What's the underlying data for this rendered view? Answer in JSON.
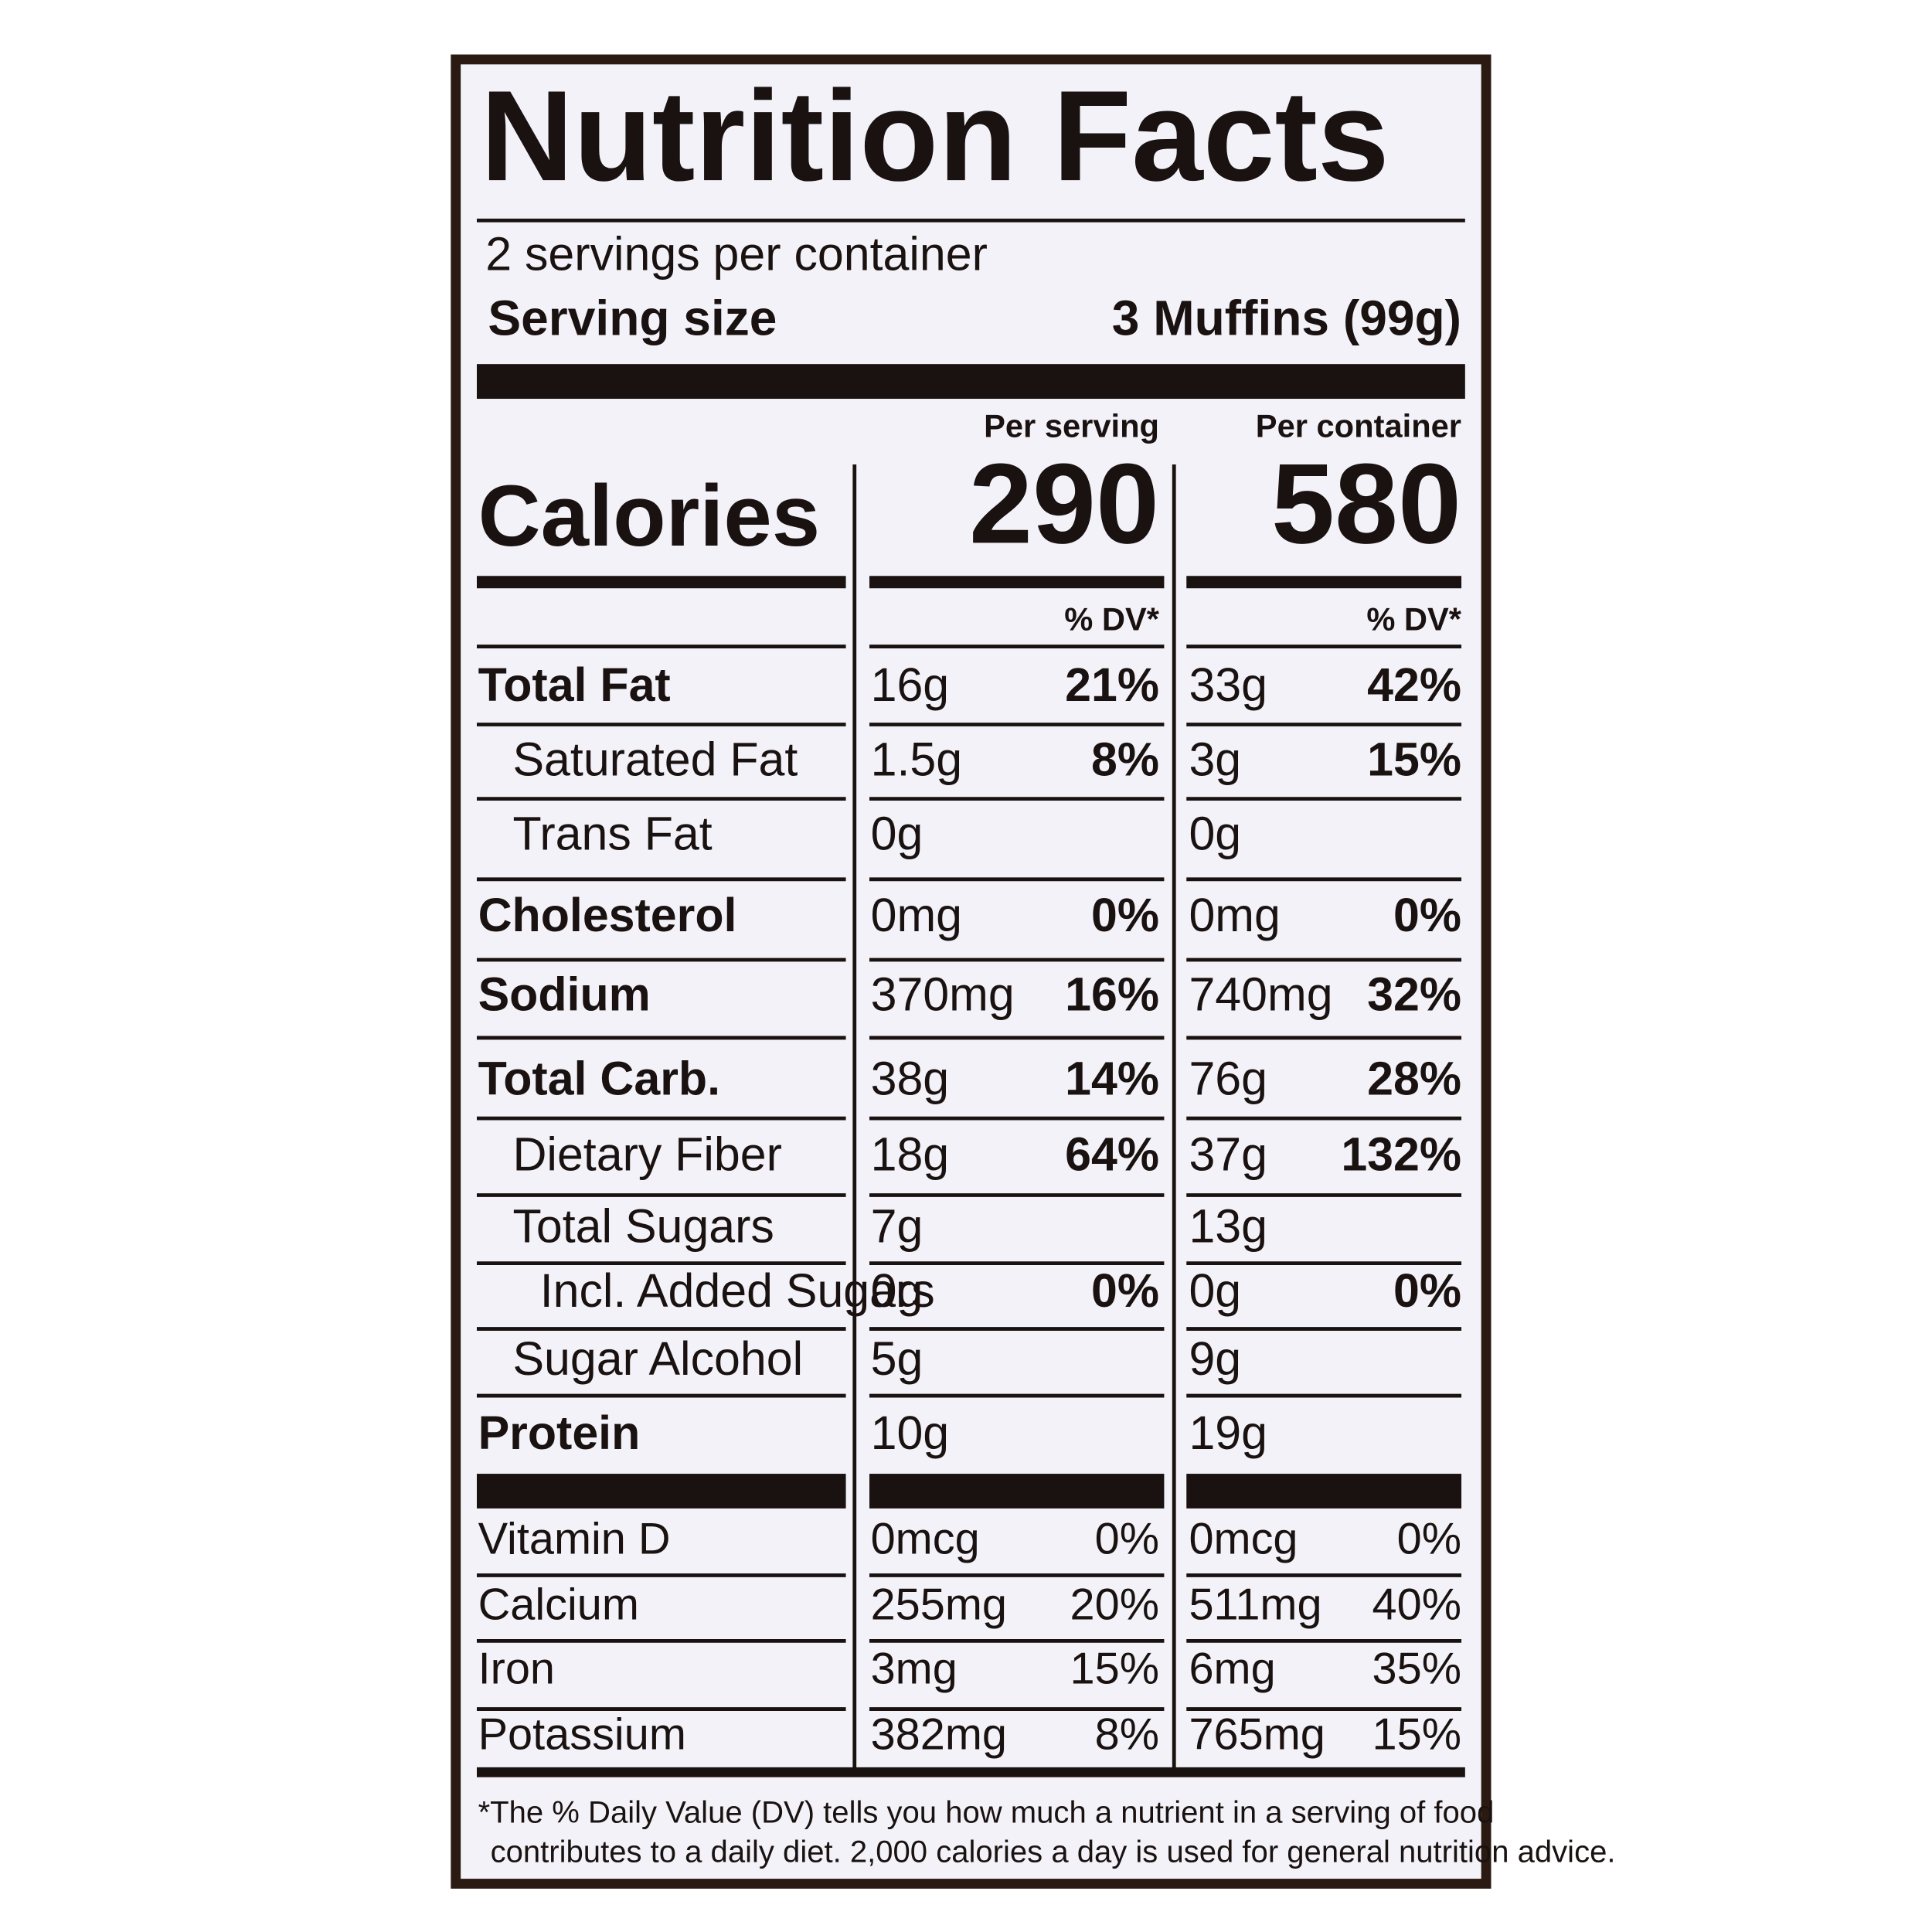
{
  "header": {
    "title": "Nutrition Facts",
    "servings_per_container": "2 servings per container",
    "serving_size_label": "Serving size",
    "serving_size_value": "3 Muffins (99g)"
  },
  "columns": {
    "per_serving": "Per serving",
    "per_container": "Per container",
    "dv_serving": "% DV*",
    "dv_container": "% DV*"
  },
  "calories": {
    "label": "Calories",
    "per_serving": "290",
    "per_container": "580"
  },
  "rows": [
    [
      "Total Fat",
      "16g",
      "21%",
      "33g",
      "42%"
    ],
    [
      "Saturated Fat",
      "1.5g",
      "8%",
      "3g",
      "15%"
    ],
    [
      "Trans Fat",
      "0g",
      null,
      "0g",
      null
    ],
    [
      "Cholesterol",
      "0mg",
      "0%",
      "0mg",
      "0%"
    ],
    [
      "Sodium",
      "370mg",
      "16%",
      "740mg",
      "32%"
    ],
    [
      "Total Carb.",
      "38g",
      "14%",
      "76g",
      "28%"
    ],
    [
      "Dietary Fiber",
      "18g",
      "64%",
      "37g",
      "132%"
    ],
    [
      "Total Sugars",
      "7g",
      null,
      "13g",
      null
    ],
    [
      "Incl. Added Sugars",
      "0g",
      "0%",
      "0g",
      "0%"
    ],
    [
      "Sugar Alcohol",
      "5g",
      null,
      "9g",
      null
    ],
    [
      "Protein",
      "10g",
      null,
      "19g",
      null
    ],
    [
      "Vitamin D",
      "0mcg",
      "0%",
      "0mcg",
      "0%"
    ],
    [
      "Calcium",
      "255mg",
      "20%",
      "511mg",
      "40%"
    ],
    [
      "Iron",
      "3mg",
      "15%",
      "6mg",
      "35%"
    ],
    [
      "Potassium",
      "382mg",
      "8%",
      "765mg",
      "15%"
    ]
  ],
  "footnote": [
    "*The % Daily Value (DV) tells you how much a nutrient in a serving of food",
    "contributes to a daily diet. 2,000 calories a day is used for general nutrition advice."
  ]
}
